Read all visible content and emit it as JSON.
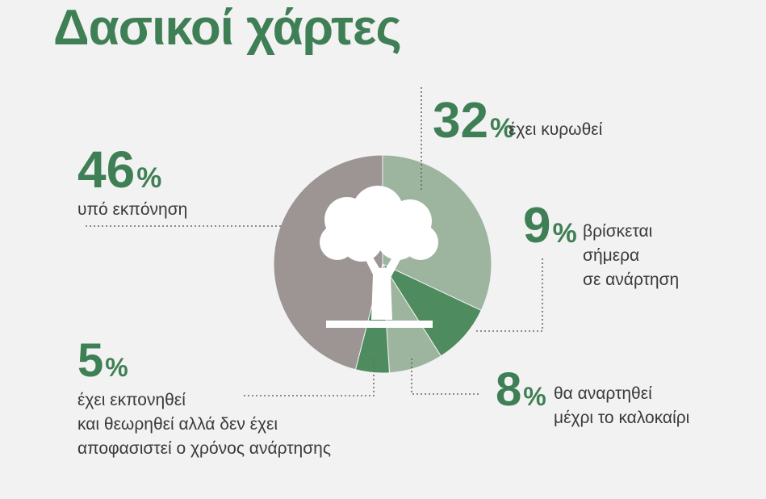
{
  "title": "Δασικοί χάρτες",
  "chart_data": {
    "type": "pie",
    "style": "donut",
    "slices": [
      {
        "value": 32,
        "pct_text": "32",
        "label_lines": [
          "έχει κυρωθεί"
        ],
        "color": "#9db49f"
      },
      {
        "value": 9,
        "pct_text": "9",
        "label_lines": [
          "βρίσκεται",
          "σήμερα",
          "σε ανάρτηση"
        ],
        "color": "#4e8b5f"
      },
      {
        "value": 8,
        "pct_text": "8",
        "label_lines": [
          "θα αναρτηθεί",
          "μέχρι το καλοκαίρι"
        ],
        "color": "#9db49f"
      },
      {
        "value": 5,
        "pct_text": "5",
        "label_lines": [
          "έχει εκπονηθεί",
          "και θεωρηθεί αλλά δεν έχει",
          "αποφασιστεί ο χρόνος ανάρτησης"
        ],
        "color": "#4e8b5f"
      },
      {
        "value": 46,
        "pct_text": "46",
        "label_lines": [
          "υπό εκπόνηση"
        ],
        "color": "#9c9593"
      }
    ],
    "percent_sign": "%",
    "center_icon": "tree-icon",
    "legend": "none",
    "grid": false
  }
}
